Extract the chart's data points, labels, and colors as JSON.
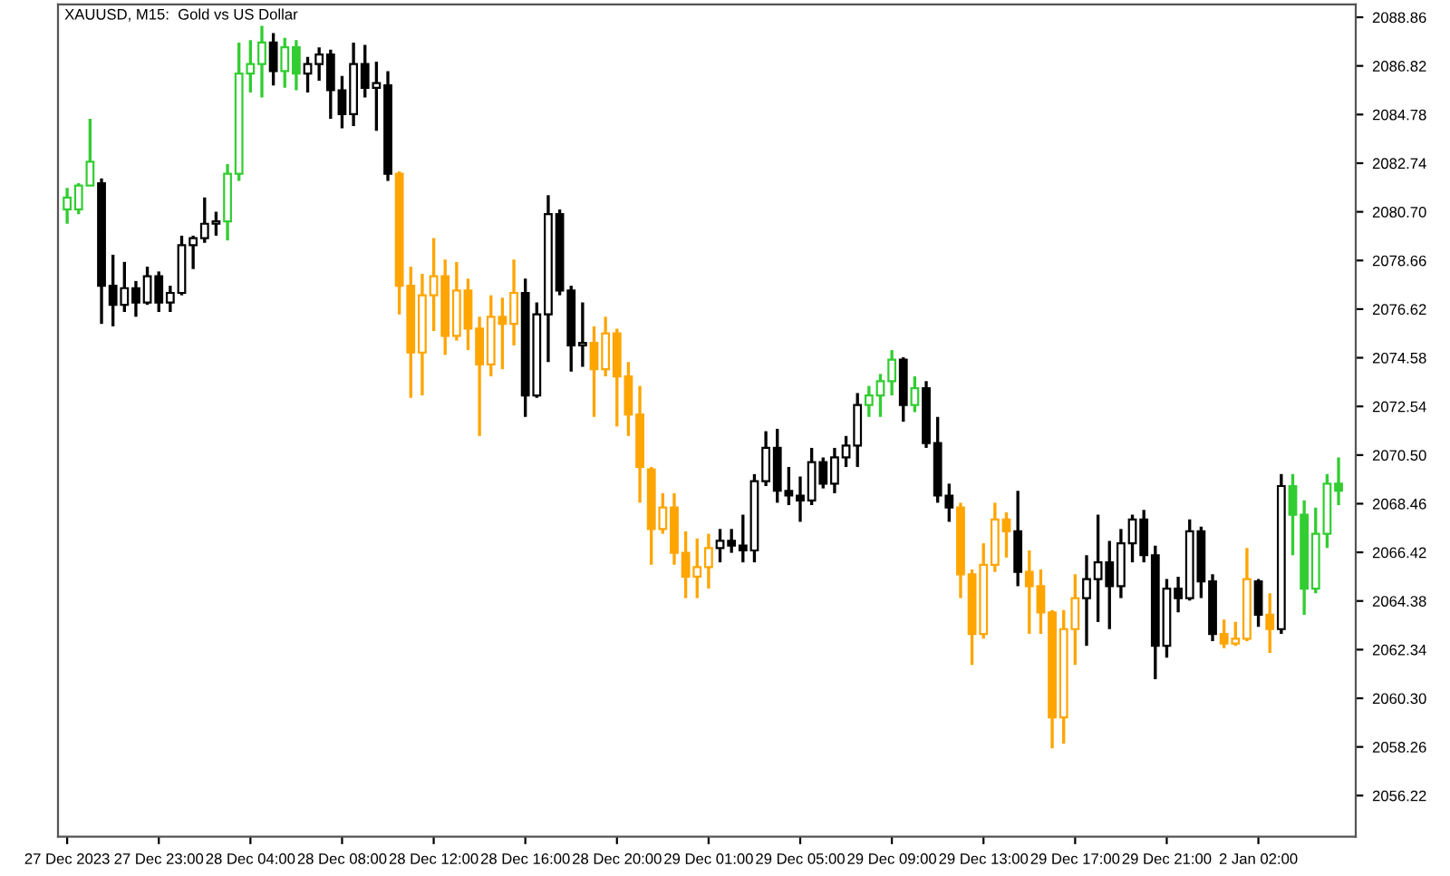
{
  "chart_data": {
    "type": "candlestick",
    "title": "XAUUSD, M15:  Gold vs US Dollar",
    "categories": [
      "27 Dec 2023",
      null,
      null,
      null,
      null,
      null,
      null,
      null,
      "27 Dec 23:00",
      null,
      null,
      null,
      null,
      null,
      null,
      null,
      "28 Dec 04:00",
      null,
      null,
      null,
      null,
      null,
      null,
      null,
      "28 Dec 08:00",
      null,
      null,
      null,
      null,
      null,
      null,
      null,
      "28 Dec 12:00",
      null,
      null,
      null,
      null,
      null,
      null,
      null,
      "28 Dec 16:00",
      null,
      null,
      null,
      null,
      null,
      null,
      null,
      "28 Dec 20:00",
      null,
      null,
      null,
      null,
      null,
      null,
      null,
      "29 Dec 01:00",
      null,
      null,
      null,
      null,
      null,
      null,
      null,
      "29 Dec 05:00",
      null,
      null,
      null,
      null,
      null,
      null,
      null,
      "29 Dec 09:00",
      null,
      null,
      null,
      null,
      null,
      null,
      null,
      "29 Dec 13:00",
      null,
      null,
      null,
      null,
      null,
      null,
      null,
      "29 Dec 17:00",
      null,
      null,
      null,
      null,
      null,
      null,
      null,
      "29 Dec 21:00",
      null,
      null,
      null,
      null,
      null,
      null,
      null,
      "2 Jan 02:00",
      null,
      null,
      null,
      null,
      null,
      null,
      null
    ],
    "ohlc": [
      [
        2080.8,
        2081.7,
        2080.2,
        2081.3
      ],
      [
        2080.8,
        2081.9,
        2080.6,
        2081.8
      ],
      [
        2081.8,
        2084.6,
        2081.8,
        2082.8
      ],
      [
        2081.9,
        2082.1,
        2076.0,
        2077.6
      ],
      [
        2077.6,
        2078.9,
        2075.9,
        2076.8
      ],
      [
        2076.8,
        2078.6,
        2076.5,
        2077.5
      ],
      [
        2077.5,
        2077.8,
        2076.3,
        2076.9
      ],
      [
        2076.9,
        2078.4,
        2076.8,
        2078.0
      ],
      [
        2078.0,
        2078.2,
        2076.5,
        2076.9
      ],
      [
        2076.9,
        2077.6,
        2076.5,
        2077.3
      ],
      [
        2077.3,
        2079.7,
        2077.2,
        2079.3
      ],
      [
        2079.3,
        2079.7,
        2078.3,
        2079.6
      ],
      [
        2079.6,
        2081.3,
        2079.4,
        2080.2
      ],
      [
        2080.2,
        2080.7,
        2079.7,
        2080.3
      ],
      [
        2080.3,
        2082.7,
        2079.5,
        2082.3
      ],
      [
        2082.3,
        2087.8,
        2082.0,
        2086.5
      ],
      [
        2086.5,
        2087.9,
        2085.7,
        2086.9
      ],
      [
        2086.9,
        2088.5,
        2085.5,
        2087.8
      ],
      [
        2087.8,
        2088.2,
        2086.0,
        2086.6
      ],
      [
        2086.6,
        2088.0,
        2085.9,
        2087.6
      ],
      [
        2087.6,
        2087.9,
        2085.8,
        2086.5
      ],
      [
        2086.5,
        2087.2,
        2085.7,
        2086.9
      ],
      [
        2086.9,
        2087.6,
        2086.2,
        2087.3
      ],
      [
        2087.3,
        2087.5,
        2084.6,
        2085.8
      ],
      [
        2085.8,
        2086.4,
        2084.2,
        2084.8
      ],
      [
        2084.8,
        2087.8,
        2084.3,
        2086.9
      ],
      [
        2086.9,
        2087.7,
        2085.5,
        2085.9
      ],
      [
        2085.9,
        2087.0,
        2084.1,
        2086.1
      ],
      [
        2086.0,
        2086.6,
        2082.0,
        2082.3
      ],
      [
        2082.3,
        2082.4,
        2076.4,
        2077.6
      ],
      [
        2077.6,
        2078.4,
        2072.9,
        2074.8
      ],
      [
        2074.8,
        2078.1,
        2073.0,
        2077.2
      ],
      [
        2077.2,
        2079.6,
        2075.7,
        2078.0
      ],
      [
        2078.0,
        2078.7,
        2074.7,
        2075.5
      ],
      [
        2075.5,
        2078.6,
        2075.3,
        2077.4
      ],
      [
        2077.4,
        2077.9,
        2074.9,
        2075.8
      ],
      [
        2075.8,
        2076.3,
        2071.3,
        2074.3
      ],
      [
        2074.3,
        2077.2,
        2073.8,
        2076.3
      ],
      [
        2076.3,
        2077.1,
        2074.1,
        2076.0
      ],
      [
        2076.0,
        2078.7,
        2075.1,
        2077.3
      ],
      [
        2077.3,
        2077.9,
        2072.1,
        2073.0
      ],
      [
        2073.0,
        2076.9,
        2072.9,
        2076.4
      ],
      [
        2076.4,
        2081.4,
        2074.4,
        2080.6
      ],
      [
        2080.6,
        2080.8,
        2077.2,
        2077.4
      ],
      [
        2077.4,
        2077.6,
        2074.0,
        2075.1
      ],
      [
        2075.1,
        2076.9,
        2074.2,
        2075.2
      ],
      [
        2075.2,
        2075.9,
        2072.1,
        2074.1
      ],
      [
        2074.1,
        2076.3,
        2073.8,
        2075.6
      ],
      [
        2075.6,
        2075.8,
        2071.7,
        2073.8
      ],
      [
        2073.8,
        2074.4,
        2071.3,
        2072.2
      ],
      [
        2072.2,
        2073.4,
        2068.5,
        2070.0
      ],
      [
        2069.9,
        2070.0,
        2065.9,
        2067.4
      ],
      [
        2067.4,
        2068.9,
        2067.2,
        2068.3
      ],
      [
        2068.3,
        2068.9,
        2065.9,
        2066.4
      ],
      [
        2066.4,
        2067.3,
        2064.5,
        2065.4
      ],
      [
        2065.4,
        2067.0,
        2064.5,
        2065.8
      ],
      [
        2065.8,
        2067.2,
        2064.9,
        2066.6
      ],
      [
        2066.6,
        2067.4,
        2066.0,
        2066.9
      ],
      [
        2066.9,
        2067.4,
        2066.4,
        2066.7
      ],
      [
        2066.7,
        2068.0,
        2066.0,
        2066.5
      ],
      [
        2066.5,
        2069.7,
        2066.0,
        2069.4
      ],
      [
        2069.4,
        2071.5,
        2069.2,
        2070.8
      ],
      [
        2070.8,
        2071.6,
        2068.5,
        2069.0
      ],
      [
        2069.0,
        2070.0,
        2068.4,
        2068.8
      ],
      [
        2068.8,
        2069.6,
        2067.7,
        2068.6
      ],
      [
        2068.6,
        2070.8,
        2068.4,
        2070.2
      ],
      [
        2070.2,
        2070.4,
        2069.1,
        2069.3
      ],
      [
        2069.3,
        2070.8,
        2068.9,
        2070.4
      ],
      [
        2070.4,
        2071.3,
        2070.0,
        2070.9
      ],
      [
        2070.9,
        2073.1,
        2070.0,
        2072.6
      ],
      [
        2072.6,
        2073.4,
        2072.1,
        2073.0
      ],
      [
        2073.0,
        2073.9,
        2072.1,
        2073.6
      ],
      [
        2073.6,
        2074.9,
        2073.0,
        2074.5
      ],
      [
        2074.5,
        2074.6,
        2071.9,
        2072.6
      ],
      [
        2072.6,
        2073.8,
        2072.3,
        2073.3
      ],
      [
        2073.3,
        2073.6,
        2070.8,
        2071.0
      ],
      [
        2071.0,
        2072.1,
        2068.5,
        2068.8
      ],
      [
        2068.8,
        2069.3,
        2067.7,
        2068.3
      ],
      [
        2068.3,
        2068.5,
        2064.5,
        2065.5
      ],
      [
        2065.5,
        2065.7,
        2061.7,
        2063.0
      ],
      [
        2063.0,
        2066.8,
        2062.8,
        2065.9
      ],
      [
        2065.9,
        2068.5,
        2065.6,
        2067.8
      ],
      [
        2067.8,
        2068.1,
        2066.2,
        2067.3
      ],
      [
        2067.3,
        2069.0,
        2065.0,
        2065.6
      ],
      [
        2065.6,
        2066.5,
        2063.0,
        2065.0
      ],
      [
        2065.0,
        2065.7,
        2063.0,
        2063.9
      ],
      [
        2063.9,
        2064.0,
        2058.2,
        2059.5
      ],
      [
        2059.5,
        2064.0,
        2058.4,
        2063.2
      ],
      [
        2063.2,
        2065.5,
        2061.7,
        2064.5
      ],
      [
        2064.5,
        2066.3,
        2062.5,
        2065.3
      ],
      [
        2065.3,
        2068.0,
        2063.5,
        2066.0
      ],
      [
        2066.0,
        2066.9,
        2063.2,
        2065.0
      ],
      [
        2065.0,
        2067.4,
        2064.5,
        2066.8
      ],
      [
        2066.8,
        2068.0,
        2066.0,
        2067.8
      ],
      [
        2067.8,
        2068.2,
        2066.0,
        2066.3
      ],
      [
        2066.3,
        2066.7,
        2061.1,
        2062.5
      ],
      [
        2062.5,
        2065.3,
        2062.0,
        2064.9
      ],
      [
        2064.9,
        2065.4,
        2063.9,
        2064.5
      ],
      [
        2064.5,
        2067.8,
        2064.4,
        2067.3
      ],
      [
        2067.3,
        2067.5,
        2064.5,
        2065.2
      ],
      [
        2065.2,
        2065.5,
        2062.7,
        2063.0
      ],
      [
        2063.0,
        2063.6,
        2062.4,
        2062.6
      ],
      [
        2062.6,
        2063.5,
        2062.5,
        2062.8
      ],
      [
        2062.8,
        2066.6,
        2062.7,
        2065.3
      ],
      [
        2065.2,
        2065.3,
        2063.3,
        2063.8
      ],
      [
        2063.8,
        2064.7,
        2062.2,
        2063.2
      ],
      [
        2063.2,
        2069.7,
        2063.0,
        2069.2
      ],
      [
        2069.2,
        2069.7,
        2066.3,
        2068.0
      ],
      [
        2068.0,
        2068.6,
        2063.8,
        2064.9
      ],
      [
        2064.9,
        2068.3,
        2064.7,
        2067.2
      ],
      [
        2067.2,
        2069.7,
        2066.6,
        2069.3
      ],
      [
        2069.3,
        2070.4,
        2068.4,
        2069.0
      ]
    ],
    "colors": [
      "#32cd32",
      "#32cd32",
      "#32cd32",
      "#000000",
      "#000000",
      "#000000",
      "#000000",
      "#000000",
      "#000000",
      "#000000",
      "#000000",
      "#000000",
      "#000000",
      "#000000",
      "#32cd32",
      "#32cd32",
      "#32cd32",
      "#32cd32",
      "#000000",
      "#32cd32",
      "#32cd32",
      "#000000",
      "#000000",
      "#000000",
      "#000000",
      "#000000",
      "#000000",
      "#000000",
      "#000000",
      "#ffa500",
      "#ffa500",
      "#ffa500",
      "#ffa500",
      "#ffa500",
      "#ffa500",
      "#ffa500",
      "#ffa500",
      "#ffa500",
      "#ffa500",
      "#ffa500",
      "#000000",
      "#000000",
      "#000000",
      "#000000",
      "#000000",
      "#000000",
      "#ffa500",
      "#ffa500",
      "#ffa500",
      "#ffa500",
      "#ffa500",
      "#ffa500",
      "#ffa500",
      "#ffa500",
      "#ffa500",
      "#ffa500",
      "#ffa500",
      "#000000",
      "#000000",
      "#000000",
      "#000000",
      "#000000",
      "#000000",
      "#000000",
      "#000000",
      "#000000",
      "#000000",
      "#000000",
      "#000000",
      "#000000",
      "#32cd32",
      "#32cd32",
      "#32cd32",
      "#000000",
      "#32cd32",
      "#000000",
      "#000000",
      "#000000",
      "#ffa500",
      "#ffa500",
      "#ffa500",
      "#ffa500",
      "#ffa500",
      "#000000",
      "#ffa500",
      "#ffa500",
      "#ffa500",
      "#ffa500",
      "#ffa500",
      "#000000",
      "#000000",
      "#000000",
      "#000000",
      "#000000",
      "#000000",
      "#000000",
      "#000000",
      "#000000",
      "#000000",
      "#000000",
      "#000000",
      "#ffa500",
      "#ffa500",
      "#ffa500",
      "#000000",
      "#ffa500",
      "#000000",
      "#32cd32",
      "#32cd32",
      "#32cd32",
      "#32cd32",
      "#32cd32"
    ],
    "ylim": [
      2054.5,
      2089.4
    ],
    "yticks": [
      2056.22,
      2058.26,
      {
        "value": 2060.3,
        "label": "2060.30"
      },
      2062.34,
      2064.38,
      2066.42,
      2068.46,
      {
        "value": 2070.5,
        "label": "2070.50"
      },
      2072.54,
      2074.58,
      2076.62,
      2078.66,
      {
        "value": 2080.7,
        "label": "2080.70"
      },
      2082.74,
      2084.78,
      2086.82,
      2088.86
    ],
    "grid": false
  }
}
